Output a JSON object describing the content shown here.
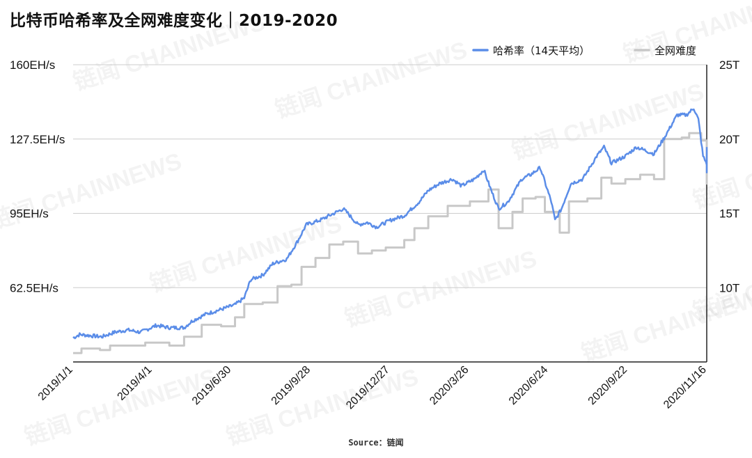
{
  "watermark": "链闻 CHAINNEWS",
  "source": "Source：链闻",
  "chart_data": {
    "type": "line",
    "title": "比特币哈希率及全网难度变化｜2019-2020",
    "legend": {
      "placement": "top-right",
      "entries": [
        "哈希率（14天平均）",
        "全网难度"
      ]
    },
    "grid": true,
    "x_range": [
      "2019-01-01",
      "2020-11-16"
    ],
    "x_ticks": [
      "2019/1/1",
      "2019/4/1",
      "2019/6/30",
      "2019/9/28",
      "2019/12/27",
      "2020/3/26",
      "2020/6/24",
      "2020/9/22",
      "2020/11/16"
    ],
    "y_left": {
      "range": [
        30,
        160
      ],
      "ticks": [
        "160EH/s",
        "127.5EH/s",
        "95EH/s",
        "62.5EH/s"
      ],
      "tick_values": [
        160,
        127.5,
        95,
        62.5
      ]
    },
    "y_right": {
      "range": [
        5,
        25
      ],
      "ticks": [
        "25T",
        "20T",
        "15T",
        "10T"
      ],
      "tick_values": [
        25,
        20,
        15,
        10
      ]
    },
    "colors": {
      "hashrate": "#5b8de8",
      "difficulty": "#c8c8c8",
      "grid": "#cccccc"
    },
    "series": [
      {
        "name": "哈希率（14天平均）",
        "axis": "left",
        "points": [
          [
            "2019-01-01",
            40.5
          ],
          [
            "2019-01-08",
            42
          ],
          [
            "2019-01-20",
            41.5
          ],
          [
            "2019-02-01",
            41
          ],
          [
            "2019-02-15",
            43
          ],
          [
            "2019-03-01",
            44
          ],
          [
            "2019-03-15",
            43
          ],
          [
            "2019-04-01",
            46
          ],
          [
            "2019-04-15",
            45
          ],
          [
            "2019-05-01",
            45
          ],
          [
            "2019-05-10",
            48
          ],
          [
            "2019-05-25",
            51
          ],
          [
            "2019-06-10",
            53
          ],
          [
            "2019-06-25",
            55
          ],
          [
            "2019-07-05",
            58
          ],
          [
            "2019-07-12",
            66
          ],
          [
            "2019-07-25",
            68
          ],
          [
            "2019-08-05",
            73
          ],
          [
            "2019-08-20",
            75
          ],
          [
            "2019-09-01",
            83
          ],
          [
            "2019-09-10",
            90
          ],
          [
            "2019-09-25",
            92
          ],
          [
            "2019-10-10",
            95
          ],
          [
            "2019-10-20",
            97
          ],
          [
            "2019-10-25",
            95
          ],
          [
            "2019-11-05",
            90
          ],
          [
            "2019-11-15",
            91
          ],
          [
            "2019-11-25",
            89
          ],
          [
            "2019-12-10",
            92
          ],
          [
            "2019-12-25",
            94
          ],
          [
            "2020-01-10",
            100
          ],
          [
            "2020-01-20",
            105
          ],
          [
            "2020-02-01",
            108
          ],
          [
            "2020-02-15",
            110
          ],
          [
            "2020-02-25",
            107
          ],
          [
            "2020-03-10",
            110
          ],
          [
            "2020-03-20",
            114
          ],
          [
            "2020-03-28",
            105
          ],
          [
            "2020-04-05",
            97
          ],
          [
            "2020-04-15",
            100
          ],
          [
            "2020-04-30",
            110
          ],
          [
            "2020-05-10",
            112
          ],
          [
            "2020-05-20",
            115
          ],
          [
            "2020-06-01",
            100
          ],
          [
            "2020-06-05",
            92
          ],
          [
            "2020-06-12",
            97
          ],
          [
            "2020-06-22",
            108
          ],
          [
            "2020-07-05",
            110
          ],
          [
            "2020-07-20",
            120
          ],
          [
            "2020-07-28",
            124
          ],
          [
            "2020-08-05",
            117
          ],
          [
            "2020-08-20",
            120
          ],
          [
            "2020-09-01",
            124
          ],
          [
            "2020-09-20",
            121
          ],
          [
            "2020-10-01",
            128
          ],
          [
            "2020-10-15",
            138
          ],
          [
            "2020-10-25",
            138
          ],
          [
            "2020-11-02",
            141
          ],
          [
            "2020-11-07",
            136
          ],
          [
            "2020-11-12",
            120
          ],
          [
            "2020-11-18",
            115
          ],
          [
            "2020-11-22",
            113
          ],
          [
            "2020-11-28",
            120
          ],
          [
            "2020-12-01",
            124
          ]
        ]
      },
      {
        "name": "全网难度",
        "axis": "right",
        "points": [
          [
            "2019-01-01",
            5.6
          ],
          [
            "2019-01-10",
            5.9
          ],
          [
            "2019-01-30",
            5.8
          ],
          [
            "2019-02-10",
            6.1
          ],
          [
            "2019-03-20",
            6.3
          ],
          [
            "2019-04-15",
            6.1
          ],
          [
            "2019-05-01",
            6.7
          ],
          [
            "2019-05-20",
            7.5
          ],
          [
            "2019-06-10",
            7.4
          ],
          [
            "2019-06-25",
            8
          ],
          [
            "2019-07-05",
            8.9
          ],
          [
            "2019-07-25",
            9.0
          ],
          [
            "2019-08-10",
            10.1
          ],
          [
            "2019-08-25",
            10.2
          ],
          [
            "2019-09-05",
            11.4
          ],
          [
            "2019-09-20",
            12.0
          ],
          [
            "2019-10-05",
            12.9
          ],
          [
            "2019-10-20",
            13.1
          ],
          [
            "2019-11-05",
            12.3
          ],
          [
            "2019-11-20",
            12.5
          ],
          [
            "2019-12-05",
            12.7
          ],
          [
            "2019-12-25",
            13.2
          ],
          [
            "2020-01-05",
            14.0
          ],
          [
            "2020-01-20",
            14.8
          ],
          [
            "2020-02-10",
            15.5
          ],
          [
            "2020-03-05",
            15.8
          ],
          [
            "2020-03-25",
            16.6
          ],
          [
            "2020-04-05",
            14.0
          ],
          [
            "2020-04-20",
            15.1
          ],
          [
            "2020-05-01",
            16.0
          ],
          [
            "2020-05-15",
            16.1
          ],
          [
            "2020-05-25",
            15.1
          ],
          [
            "2020-06-10",
            13.7
          ],
          [
            "2020-06-20",
            15.8
          ],
          [
            "2020-07-10",
            16.0
          ],
          [
            "2020-07-25",
            17.4
          ],
          [
            "2020-08-05",
            17.0
          ],
          [
            "2020-08-20",
            17.3
          ],
          [
            "2020-09-05",
            17.6
          ],
          [
            "2020-09-20",
            17.3
          ],
          [
            "2020-10-01",
            20.0
          ],
          [
            "2020-10-20",
            20.1
          ],
          [
            "2020-10-28",
            20.4
          ],
          [
            "2020-11-10",
            19.9
          ],
          [
            "2020-11-20",
            17.0
          ],
          [
            "2020-12-01",
            17.3
          ]
        ]
      }
    ]
  }
}
